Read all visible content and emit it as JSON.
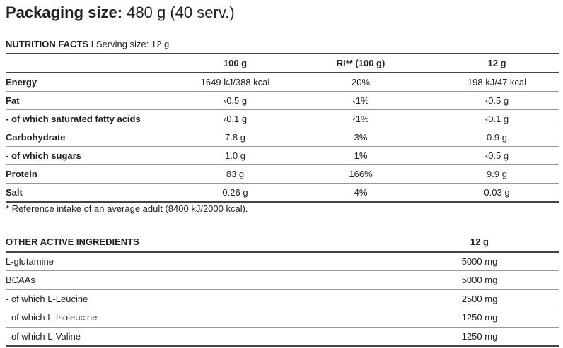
{
  "packaging": {
    "label": "Packaging size:",
    "value": "480 g (40 serv.)"
  },
  "nutrition": {
    "title": "NUTRITION FACTS",
    "serving": "I Serving size: 12 g",
    "headers": [
      "",
      "100 g",
      "RI** (100 g)",
      "12 g"
    ],
    "rows": [
      [
        "Energy",
        "1649 kJ/388 kcal",
        "20%",
        "198 kJ/47 kcal"
      ],
      [
        "Fat",
        "‹0.5 g",
        "‹1%",
        "‹0.5 g"
      ],
      [
        "- of which saturated fatty acids",
        "‹0.1 g",
        "‹1%",
        "‹0.1 g"
      ],
      [
        "Carbohydrate",
        "7.8 g",
        "3%",
        "0.9 g"
      ],
      [
        "- of which sugars",
        "1.0 g",
        "1%",
        "‹0.5 g"
      ],
      [
        "Protein",
        "83 g",
        "166%",
        "9.9 g"
      ],
      [
        "Salt",
        "0.26 g",
        "4%",
        "0.03 g"
      ]
    ],
    "footnote": "* Reference intake of an average adult (8400 kJ/2000 kcal)."
  },
  "other": {
    "title": "OTHER ACTIVE INGREDIENTS",
    "header": "12 g",
    "rows": [
      [
        "L-glutamine",
        "5000 mg"
      ],
      [
        "BCAAs",
        "5000 mg"
      ],
      [
        "- of which L-Leucine",
        "2500 mg"
      ],
      [
        "- of which L-Isoleucine",
        "1250 mg"
      ],
      [
        "- of which L-Valine",
        "1250 mg"
      ]
    ]
  }
}
